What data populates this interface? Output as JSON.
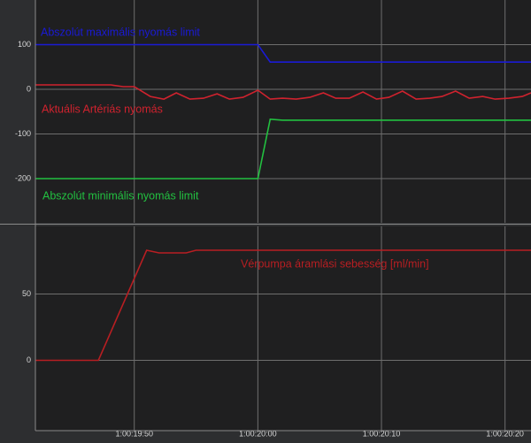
{
  "chart_data": [
    {
      "type": "line",
      "ylim": [
        -296,
        200
      ],
      "yticks": [
        -200,
        -100,
        0,
        100
      ],
      "grid": true,
      "series": [
        {
          "name": "Abszolút maximális nyomás limit",
          "color": "#1a1ad6",
          "x": [
            1182,
            1200,
            1201,
            1222.1
          ],
          "values": [
            100,
            100,
            61,
            61
          ]
        },
        {
          "name": "Aktuális Artériás nyomás",
          "color": "#d0222e",
          "x": [
            1182,
            1188.1,
            1189.1,
            1190,
            1191.3,
            1192.4,
            1193.4,
            1194.5,
            1195.6,
            1196.7,
            1197.7,
            1198.8,
            1200,
            1201,
            1202,
            1203.1,
            1204.2,
            1205.3,
            1206.3,
            1207.4,
            1208.5,
            1209.6,
            1210.6,
            1211.7,
            1212.8,
            1213.9,
            1214.9,
            1216,
            1217.1,
            1218.2,
            1219.2,
            1220.3,
            1221.4,
            1222.1
          ],
          "values": [
            10,
            10,
            6,
            6,
            -16,
            -22,
            -8,
            -22,
            -20,
            -10,
            -22,
            -18,
            -2,
            -22,
            -20,
            -22,
            -18,
            -8,
            -20,
            -20,
            -6,
            -22,
            -18,
            -4,
            -22,
            -20,
            -16,
            -4,
            -20,
            -16,
            -22,
            -20,
            -16,
            -8
          ]
        },
        {
          "name": "Abszolút minimális nyomás limit",
          "color": "#22c040",
          "x": [
            1182,
            1200,
            1201,
            1202,
            1222.1
          ],
          "values": [
            -200,
            -200,
            -67,
            -69,
            -69
          ]
        }
      ]
    },
    {
      "type": "line",
      "ylim": [
        -53,
        101
      ],
      "yticks": [
        0,
        50
      ],
      "grid": true,
      "xlim": [
        1182,
        1222.1
      ],
      "xticks": [
        {
          "value": 1190,
          "label": "1:00:19:50"
        },
        {
          "value": 1200,
          "label": "1:00:20:00"
        },
        {
          "value": 1210,
          "label": "1:00:20:10"
        },
        {
          "value": 1220,
          "label": "1:00:20:20"
        }
      ],
      "series": [
        {
          "name": "Vérpumpa áramlási sebesség [ml/min]",
          "color": "#b81e22",
          "x": [
            1182,
            1187.1,
            1191,
            1192,
            1194.2,
            1195,
            1222.1
          ],
          "values": [
            0,
            0,
            83,
            81,
            81,
            83,
            83
          ]
        }
      ]
    }
  ]
}
